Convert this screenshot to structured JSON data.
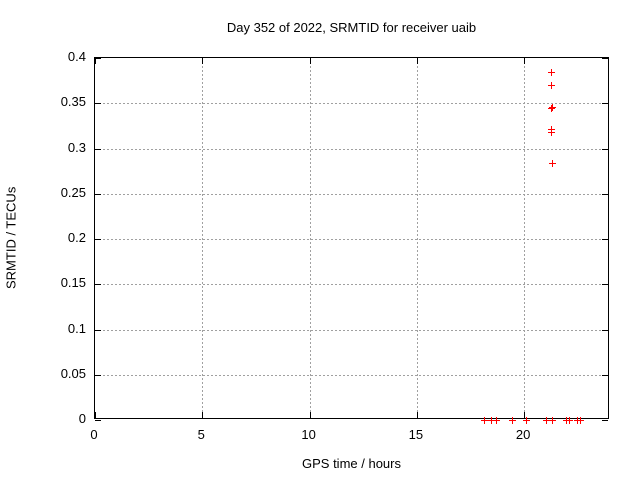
{
  "chart_data": {
    "type": "scatter",
    "title": "Day 352 of 2022, SRMTID for receiver uaib",
    "xlabel": "GPS time / hours",
    "ylabel": "SRMTID / TECUs",
    "xlim": [
      0,
      24
    ],
    "ylim": [
      0,
      0.4
    ],
    "xticks": {
      "values": [
        0,
        5,
        10,
        15,
        20
      ],
      "labels": [
        "0",
        "5",
        "10",
        "15",
        "20"
      ]
    },
    "yticks": {
      "values": [
        0,
        0.05,
        0.1,
        0.15,
        0.2,
        0.25,
        0.3,
        0.35,
        0.4
      ],
      "labels": [
        "0",
        "0.05",
        "0.1",
        "0.15",
        "0.2",
        "0.25",
        "0.3",
        "0.35",
        "0.4"
      ]
    },
    "grid": true,
    "legend": "none",
    "marker": "plus",
    "marker_color": "#ff0000",
    "grid_color": "#a0a0a0",
    "border_color": "#000000",
    "series": [
      {
        "name": "SRMTID",
        "points": [
          [
            18.13,
            0
          ],
          [
            18.44,
            0
          ],
          [
            18.69,
            0
          ],
          [
            19.44,
            0
          ],
          [
            20.07,
            0
          ],
          [
            21.04,
            0
          ],
          [
            21.32,
            0
          ],
          [
            21.97,
            0
          ],
          [
            22.11,
            0
          ],
          [
            22.44,
            0
          ],
          [
            22.58,
            0
          ],
          [
            21.25,
            0.385
          ],
          [
            21.25,
            0.37
          ],
          [
            21.23,
            0.345
          ],
          [
            21.28,
            0.346
          ],
          [
            21.23,
            0.322
          ],
          [
            21.26,
            0.318
          ],
          [
            21.3,
            0.284
          ]
        ]
      }
    ]
  }
}
